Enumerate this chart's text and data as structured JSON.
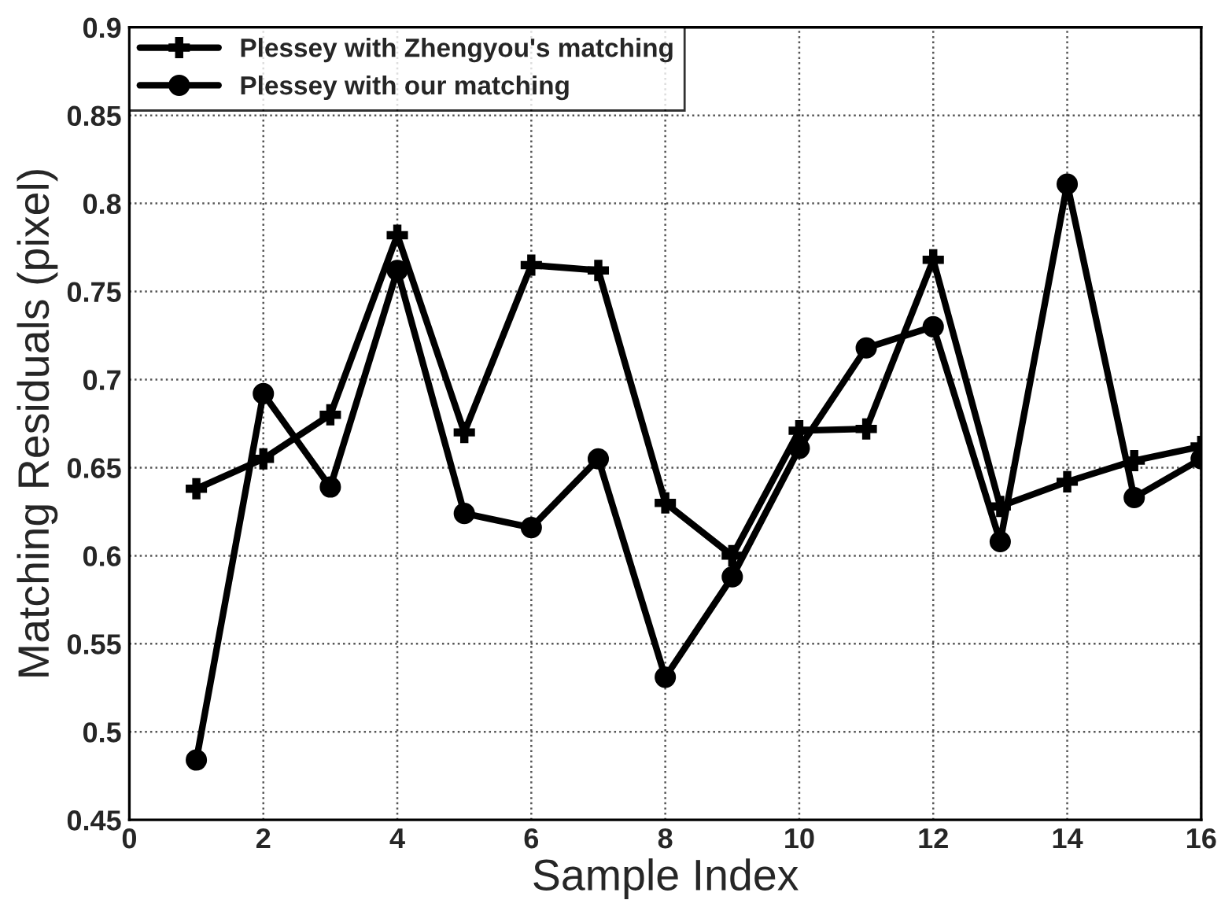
{
  "chart_data": {
    "type": "line",
    "xlabel": "Sample Index",
    "ylabel": "Matching Residuals (pixel)",
    "x": [
      1,
      2,
      3,
      4,
      5,
      6,
      7,
      8,
      9,
      10,
      11,
      12,
      13,
      14,
      15,
      16
    ],
    "series": [
      {
        "name": "Plessey with Zhengyou's matching",
        "color": "#000000",
        "marker": "cross",
        "values": [
          0.638,
          0.655,
          0.68,
          0.782,
          0.67,
          0.765,
          0.762,
          0.63,
          0.6,
          0.671,
          0.672,
          0.768,
          0.628,
          0.642,
          0.654,
          0.662
        ]
      },
      {
        "name": "Plessey with our matching",
        "color": "#000000",
        "marker": "circle",
        "values": [
          0.484,
          0.692,
          0.639,
          0.762,
          0.624,
          0.616,
          0.655,
          0.531,
          0.588,
          0.661,
          0.718,
          0.73,
          0.608,
          0.811,
          0.633,
          0.655
        ]
      }
    ],
    "xlim": [
      0,
      16
    ],
    "xticks": [
      0,
      2,
      4,
      6,
      8,
      10,
      12,
      14,
      16
    ],
    "ylim": [
      0.45,
      0.9
    ],
    "yticks": [
      0.45,
      0.5,
      0.55,
      0.6,
      0.65,
      0.7,
      0.75,
      0.8,
      0.85,
      0.9
    ],
    "grid": true,
    "legend": "top left",
    "line_style": "solid"
  }
}
